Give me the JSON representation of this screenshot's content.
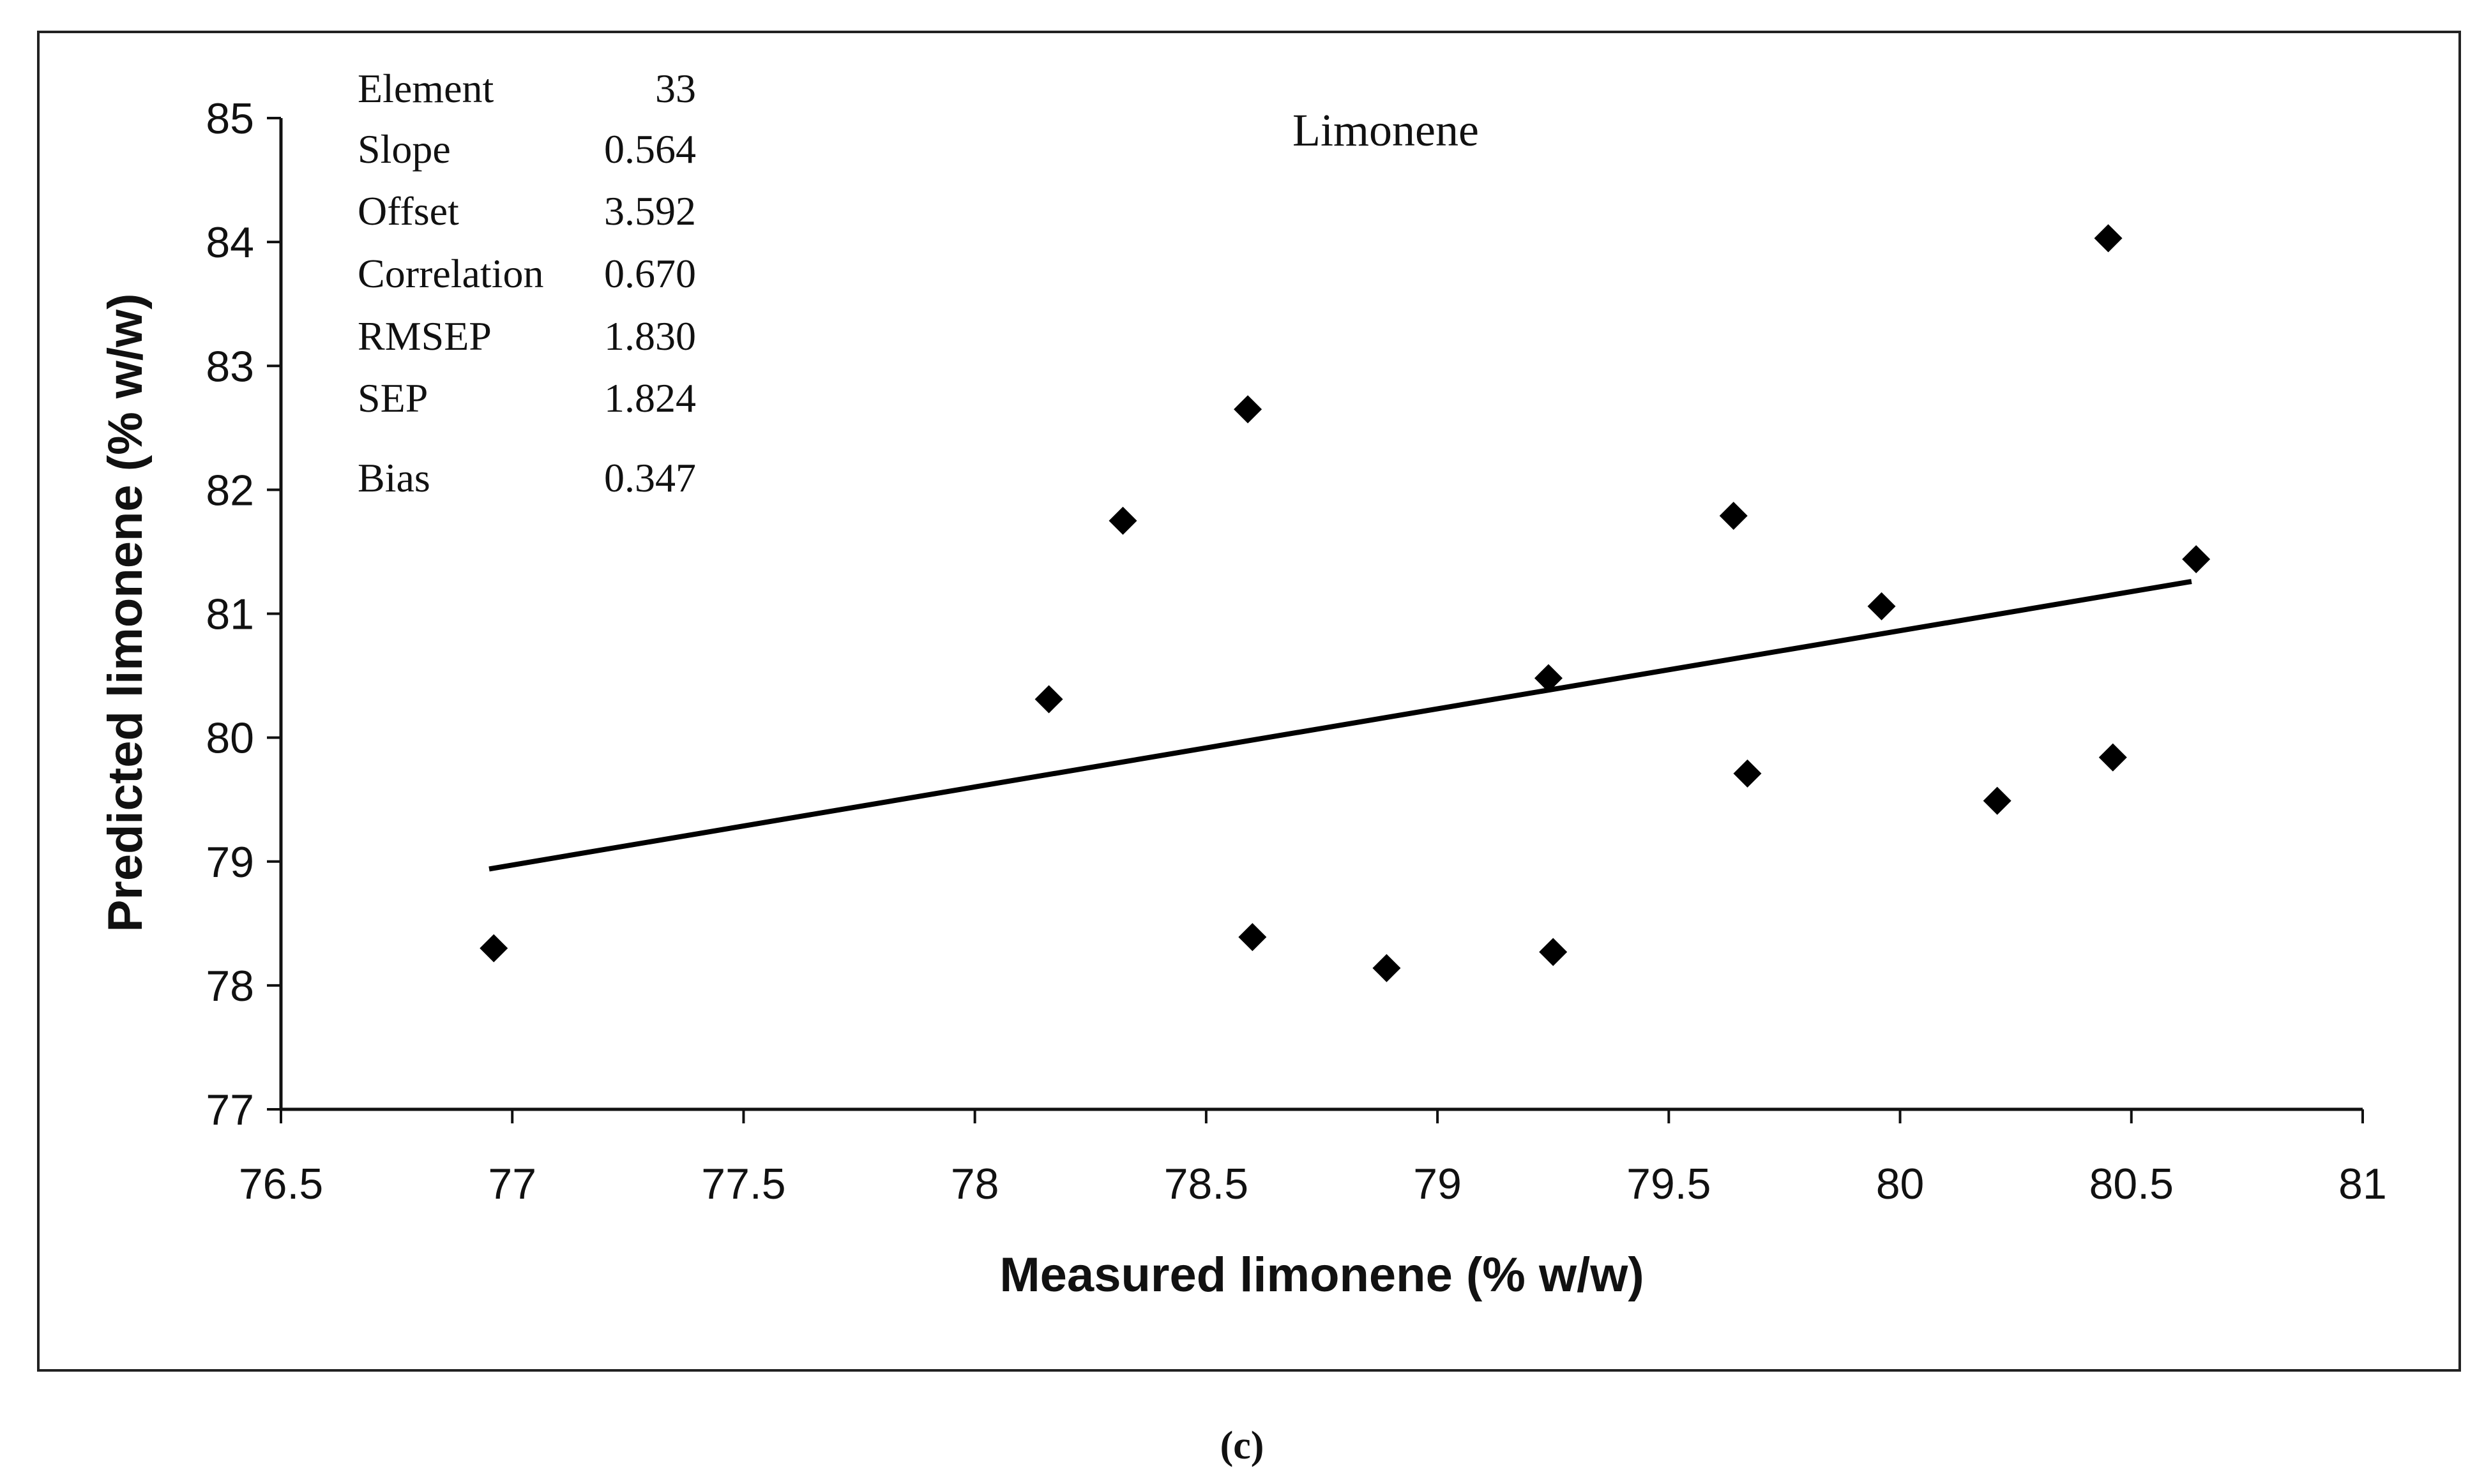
{
  "chart_data": {
    "type": "scatter",
    "title": "Limonene",
    "xlabel": "Measured limonene (% w/w)",
    "ylabel": "Predicted limonene (% w/w)",
    "xlim": [
      76.5,
      81
    ],
    "ylim": [
      77,
      85
    ],
    "xticks": [
      "76.5",
      "77",
      "77.5",
      "78",
      "78.5",
      "79",
      "79.5",
      "80",
      "80.5",
      "81"
    ],
    "yticks": [
      "77",
      "78",
      "79",
      "80",
      "81",
      "82",
      "83",
      "84",
      "85"
    ],
    "points": [
      {
        "x": 76.96,
        "y": 78.3
      },
      {
        "x": 78.16,
        "y": 80.31
      },
      {
        "x": 78.32,
        "y": 81.75
      },
      {
        "x": 78.59,
        "y": 82.65
      },
      {
        "x": 78.6,
        "y": 78.39
      },
      {
        "x": 78.89,
        "y": 78.14
      },
      {
        "x": 79.24,
        "y": 80.48
      },
      {
        "x": 79.25,
        "y": 78.27
      },
      {
        "x": 79.64,
        "y": 81.79
      },
      {
        "x": 79.67,
        "y": 79.71
      },
      {
        "x": 79.96,
        "y": 81.06
      },
      {
        "x": 80.21,
        "y": 79.49
      },
      {
        "x": 80.45,
        "y": 84.03
      },
      {
        "x": 80.46,
        "y": 79.84
      },
      {
        "x": 80.64,
        "y": 81.44
      }
    ],
    "trendline": {
      "x1": 76.95,
      "y1": 78.94,
      "x2": 80.63,
      "y2": 81.26
    }
  },
  "stats": [
    {
      "label": "Element",
      "value": "33"
    },
    {
      "label": "Slope",
      "value": "0.564"
    },
    {
      "label": "Offset",
      "value": "3.592"
    },
    {
      "label": "Correlation",
      "value": "0.670"
    },
    {
      "label": "RMSEP",
      "value": "1.830"
    },
    {
      "label": "SEP",
      "value": "1.824"
    },
    {
      "label": "Bias",
      "value": "0.347"
    }
  ],
  "caption": "(c)"
}
